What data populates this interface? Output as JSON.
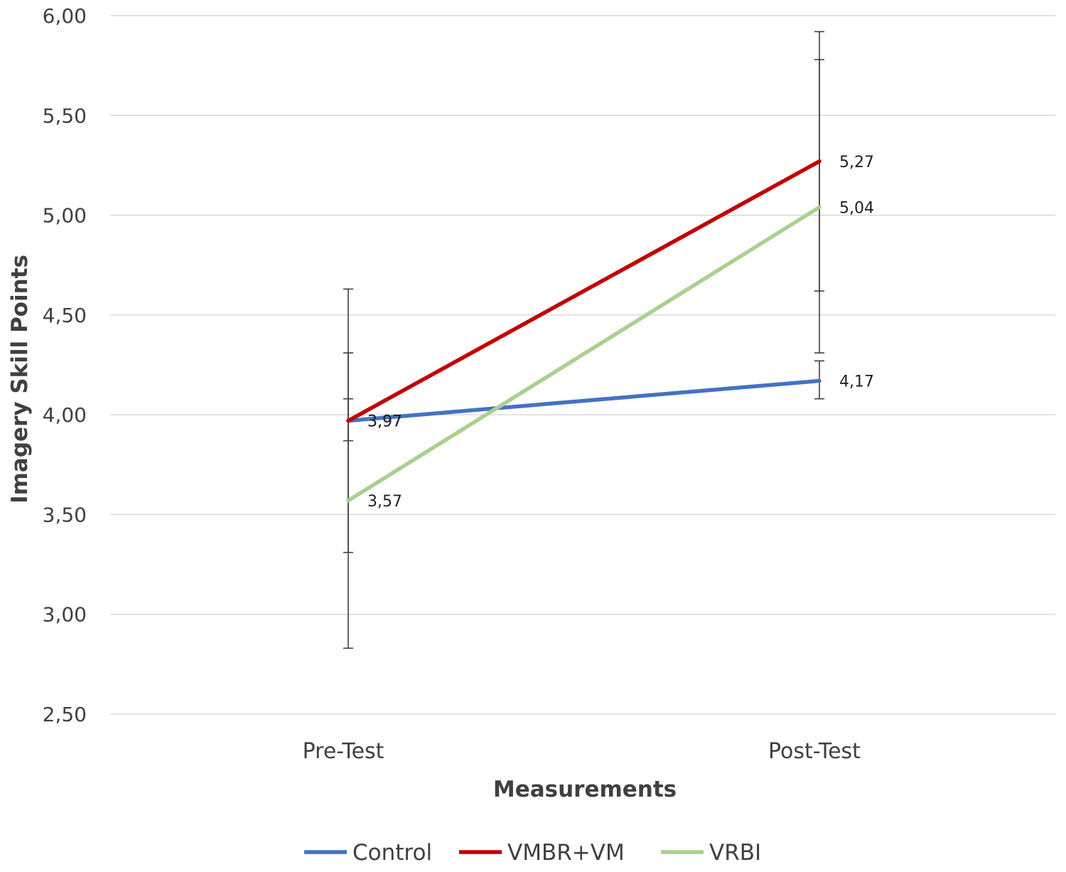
{
  "chart_data": {
    "type": "line",
    "title": "",
    "xlabel": "Measurements",
    "ylabel": "Imagery Skill Points",
    "categories": [
      "Pre-Test",
      "Post-Test"
    ],
    "ylim": [
      2.5,
      6.0
    ],
    "yticks": [
      2.5,
      3.0,
      3.5,
      4.0,
      4.5,
      5.0,
      5.5,
      6.0
    ],
    "ytick_labels": [
      "2,50",
      "3,00",
      "3,50",
      "4,00",
      "4,50",
      "5,00",
      "5,50",
      "6,00"
    ],
    "grid": "horizontal",
    "legend_position": "bottom",
    "series": [
      {
        "name": "Control",
        "color": "#4472C4",
        "values": [
          3.97,
          4.17
        ],
        "data_labels": [
          "3,97",
          "4,17"
        ],
        "error_bars": [
          [
            3.87,
            4.08
          ],
          [
            4.08,
            4.27
          ]
        ]
      },
      {
        "name": "VMBR+VM",
        "color": "#C00000",
        "values": [
          3.97,
          5.27
        ],
        "data_labels": [
          "3,97",
          "5,27"
        ],
        "error_bars": [
          [
            3.31,
            4.63
          ],
          [
            4.62,
            5.92
          ]
        ]
      },
      {
        "name": "VRBI",
        "color": "#A9D18E",
        "values": [
          3.57,
          5.04
        ],
        "data_labels": [
          "3,57",
          "5,04"
        ],
        "error_bars": [
          [
            2.83,
            4.31
          ],
          [
            4.31,
            5.78
          ]
        ]
      }
    ]
  }
}
